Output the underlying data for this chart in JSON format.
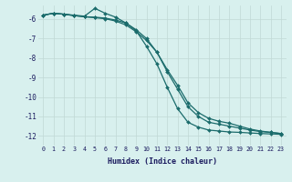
{
  "xlabel": "Humidex (Indice chaleur)",
  "background_color": "#d8f0ee",
  "grid_color": "#c0d8d5",
  "line_color": "#1a6b6b",
  "xlim": [
    -0.5,
    23.5
  ],
  "ylim": [
    -12.5,
    -5.3
  ],
  "yticks": [
    -12,
    -11,
    -10,
    -9,
    -8,
    -7,
    -6
  ],
  "xticks": [
    0,
    1,
    2,
    3,
    4,
    5,
    6,
    7,
    8,
    9,
    10,
    11,
    12,
    13,
    14,
    15,
    16,
    17,
    18,
    19,
    20,
    21,
    22,
    23
  ],
  "line1_x": [
    0,
    1,
    2,
    3,
    4,
    5,
    6,
    7,
    8,
    9,
    10,
    11,
    12,
    13,
    14,
    15,
    16,
    17,
    18,
    19,
    20,
    21,
    22,
    23
  ],
  "line1_y": [
    -5.8,
    -5.7,
    -5.75,
    -5.8,
    -5.85,
    -5.45,
    -5.7,
    -5.9,
    -6.2,
    -6.6,
    -7.4,
    -8.3,
    -9.5,
    -10.6,
    -11.3,
    -11.55,
    -11.7,
    -11.75,
    -11.8,
    -11.82,
    -11.85,
    -11.88,
    -11.9,
    -11.92
  ],
  "line2_x": [
    0,
    1,
    2,
    3,
    4,
    5,
    6,
    7,
    8,
    9,
    10,
    11,
    12,
    13,
    14,
    15,
    16,
    17,
    18,
    19,
    20,
    21,
    22,
    23
  ],
  "line2_y": [
    -5.8,
    -5.7,
    -5.75,
    -5.82,
    -5.88,
    -5.9,
    -5.95,
    -6.05,
    -6.2,
    -6.55,
    -7.0,
    -7.7,
    -8.7,
    -9.6,
    -10.5,
    -11.0,
    -11.3,
    -11.4,
    -11.5,
    -11.6,
    -11.7,
    -11.78,
    -11.82,
    -11.88
  ],
  "line3_x": [
    0,
    1,
    2,
    3,
    4,
    5,
    6,
    7,
    8,
    9,
    10,
    11,
    12,
    13,
    14,
    15,
    16,
    17,
    18,
    19,
    20,
    21,
    22,
    23
  ],
  "line3_y": [
    -5.8,
    -5.7,
    -5.75,
    -5.82,
    -5.88,
    -5.93,
    -5.98,
    -6.1,
    -6.3,
    -6.65,
    -7.1,
    -7.7,
    -8.6,
    -9.4,
    -10.3,
    -10.8,
    -11.1,
    -11.25,
    -11.35,
    -11.5,
    -11.65,
    -11.75,
    -11.82,
    -11.88
  ]
}
